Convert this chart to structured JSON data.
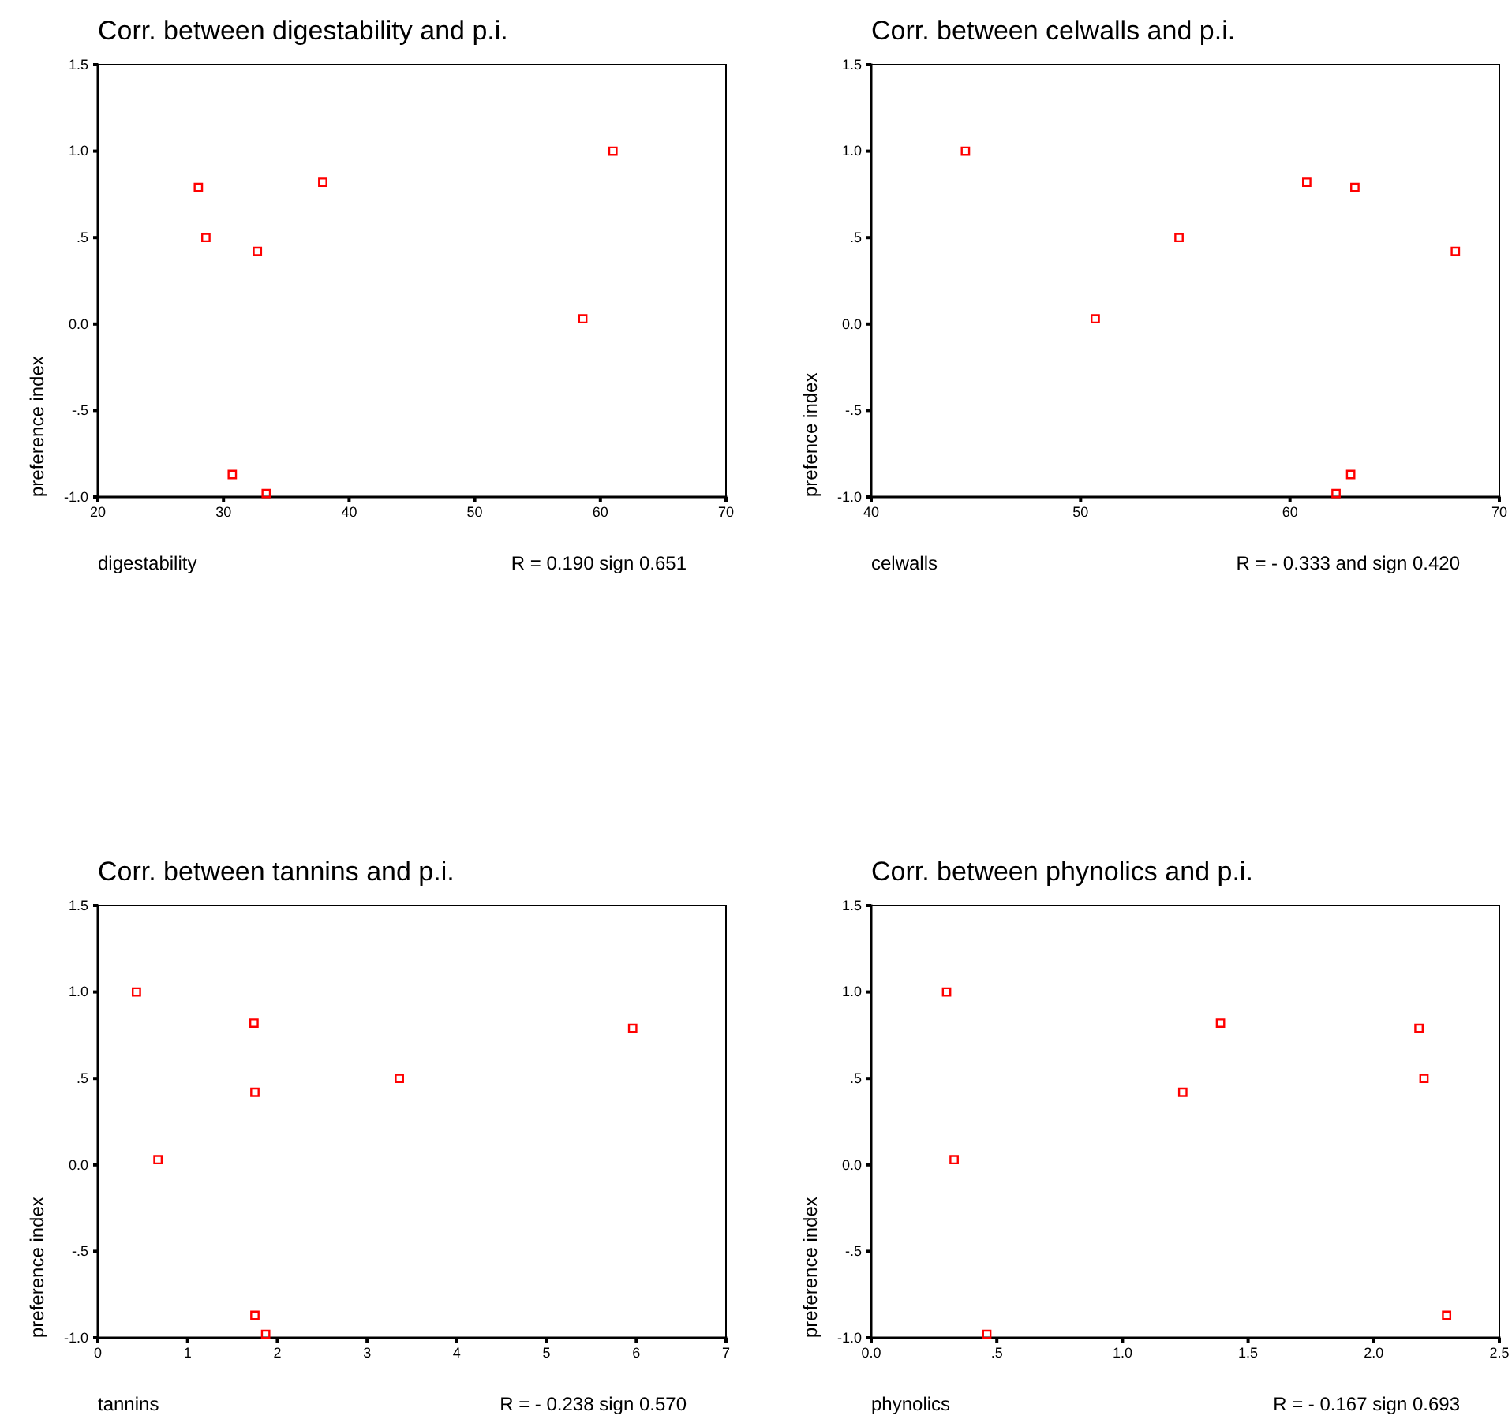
{
  "chart_data": [
    {
      "type": "scatter",
      "title": "Corr. between digestability and p.i.",
      "xlabel": "digestability",
      "ylabel": "preference index",
      "annotations": [
        "R = 0.190 sign 0.651"
      ],
      "marker": "square",
      "grid": false,
      "series": [
        {
          "color": "#ff0000",
          "x": [
            28.0,
            28.6,
            32.7,
            37.9,
            61.0,
            58.6,
            30.7,
            33.4
          ],
          "values": [
            0.79,
            0.5,
            0.42,
            0.82,
            1.0,
            0.03,
            -0.87,
            -0.98
          ]
        }
      ],
      "xlim": [
        20,
        70
      ],
      "xticks": [
        20,
        30,
        40,
        50,
        60,
        70
      ],
      "ylim": [
        -1.0,
        1.5
      ],
      "yticks": [
        {
          "value": -1.0,
          "label": "-1.0"
        },
        {
          "value": -0.5,
          "label": "-.5"
        },
        {
          "value": 0,
          "label": "0.0"
        },
        {
          "value": 0.5,
          "label": ".5"
        },
        {
          "value": 1.0,
          "label": "1.0"
        },
        {
          "value": 1.5,
          "label": "1.5"
        }
      ]
    },
    {
      "type": "scatter",
      "title": "Corr. between celwalls and p.i.",
      "xlabel": "celwalls",
      "ylabel": "prefence index",
      "annotations": [
        "R = - 0.333 and sign 0.420"
      ],
      "marker": "square",
      "grid": false,
      "series": [
        {
          "color": "#ff0000",
          "x": [
            44.5,
            50.7,
            54.7,
            60.8,
            63.1,
            67.9,
            62.9,
            62.2
          ],
          "values": [
            1.0,
            0.03,
            0.5,
            0.82,
            0.79,
            0.42,
            -0.87,
            -0.98
          ]
        }
      ],
      "xlim": [
        40,
        70
      ],
      "xticks": [
        40,
        50,
        60,
        70
      ],
      "ylim": [
        -1.0,
        1.5
      ],
      "yticks": [
        {
          "value": -1.0,
          "label": "-1.0"
        },
        {
          "value": -0.5,
          "label": "-.5"
        },
        {
          "value": 0,
          "label": "0.0"
        },
        {
          "value": 0.5,
          "label": ".5"
        },
        {
          "value": 1.0,
          "label": "1.0"
        },
        {
          "value": 1.5,
          "label": "1.5"
        }
      ]
    },
    {
      "type": "scatter",
      "title": "Corr. between tannins and p.i.",
      "xlabel": "tannins",
      "ylabel": "preference index",
      "annotations": [
        "R = - 0.238 sign 0.570"
      ],
      "marker": "square",
      "grid": false,
      "series": [
        {
          "color": "#ff0000",
          "x": [
            0.43,
            0.67,
            1.74,
            1.75,
            3.36,
            5.96,
            1.75,
            1.87
          ],
          "values": [
            1.0,
            0.03,
            0.82,
            0.42,
            0.5,
            0.79,
            -0.87,
            -0.98
          ]
        }
      ],
      "xlim": [
        0,
        7
      ],
      "xticks": [
        0,
        1,
        2,
        3,
        4,
        5,
        6,
        7
      ],
      "ylim": [
        -1.0,
        1.5
      ],
      "yticks": [
        {
          "value": -1.0,
          "label": "-1.0"
        },
        {
          "value": -0.5,
          "label": "-.5"
        },
        {
          "value": 0,
          "label": "0.0"
        },
        {
          "value": 0.5,
          "label": ".5"
        },
        {
          "value": 1.0,
          "label": "1.0"
        },
        {
          "value": 1.5,
          "label": "1.5"
        }
      ]
    },
    {
      "type": "scatter",
      "title": "Corr. between phynolics and p.i.",
      "xlabel": "phynolics",
      "ylabel": "preference index",
      "annotations": [
        "R = - 0.167 sign 0.693"
      ],
      "marker": "square",
      "grid": false,
      "series": [
        {
          "color": "#ff0000",
          "x": [
            0.3,
            0.33,
            0.46,
            1.24,
            1.39,
            2.18,
            2.2,
            2.29
          ],
          "values": [
            1.0,
            0.03,
            -0.98,
            0.42,
            0.82,
            0.79,
            0.5,
            -0.87
          ]
        }
      ],
      "xlim": [
        0,
        2.5
      ],
      "xticks": [
        {
          "value": 0,
          "label": "0.0"
        },
        {
          "value": 0.5,
          "label": ".5"
        },
        {
          "value": 1.0,
          "label": "1.0"
        },
        {
          "value": 1.5,
          "label": "1.5"
        },
        {
          "value": 2.0,
          "label": "2.0"
        },
        {
          "value": 2.5,
          "label": "2.5"
        }
      ],
      "ylim": [
        -1.0,
        1.5
      ],
      "yticks": [
        {
          "value": -1.0,
          "label": "-1.0"
        },
        {
          "value": -0.5,
          "label": "-.5"
        },
        {
          "value": 0,
          "label": "0.0"
        },
        {
          "value": 0.5,
          "label": ".5"
        },
        {
          "value": 1.0,
          "label": "1.0"
        },
        {
          "value": 1.5,
          "label": "1.5"
        }
      ]
    }
  ]
}
